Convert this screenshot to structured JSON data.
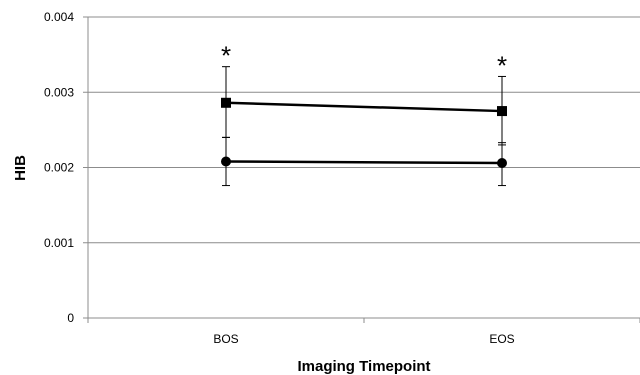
{
  "chart_data": {
    "type": "line",
    "title": "",
    "xlabel": "Imaging Timepoint",
    "ylabel": "HIB",
    "categories": [
      "BOS",
      "EOS"
    ],
    "ylim": [
      0,
      0.004
    ],
    "yticks": [
      "0",
      "0.001",
      "0.002",
      "0.003",
      "0.004"
    ],
    "ytick_values": [
      0,
      0.001,
      0.002,
      0.003,
      0.004
    ],
    "grid": "horizontal",
    "legend": "none",
    "series": [
      {
        "marker": "square",
        "values": [
          0.00286,
          0.00275
        ],
        "err_upper": [
          0.00334,
          0.00321
        ],
        "err_lower": [
          0.0024,
          0.0023
        ]
      },
      {
        "marker": "circle",
        "values": [
          0.00208,
          0.00206
        ],
        "err_upper": [
          0.0024,
          0.00233
        ],
        "err_lower": [
          0.00176,
          0.00176
        ]
      }
    ],
    "annotations": [
      {
        "category": "BOS",
        "text": "*"
      },
      {
        "category": "EOS",
        "text": "*"
      }
    ]
  }
}
